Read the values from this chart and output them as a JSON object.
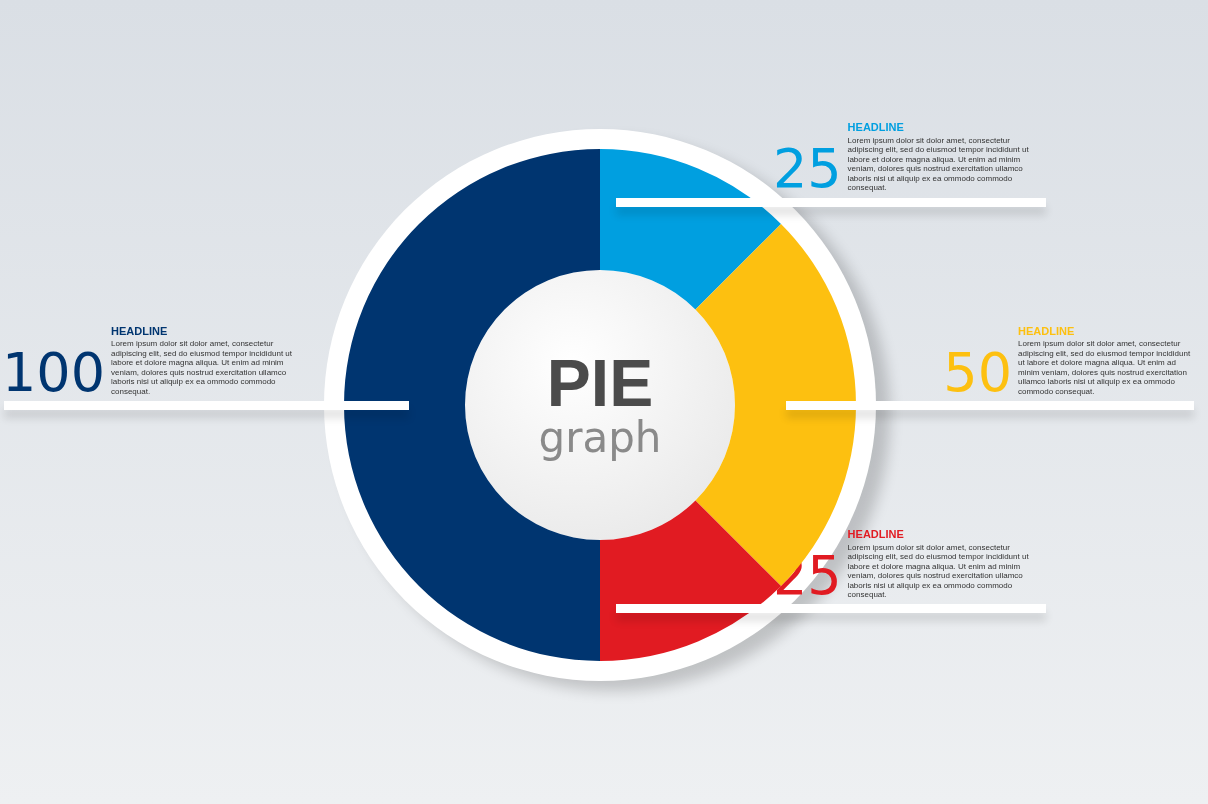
{
  "chart_data": {
    "type": "donut",
    "title": "PIE",
    "subtitle": "graph",
    "categories": [
      "HEADLINE",
      "HEADLINE",
      "HEADLINE",
      "HEADLINE"
    ],
    "values": [
      25,
      50,
      25,
      100
    ],
    "colors": [
      "#009fe0",
      "#fdc010",
      "#e11b22",
      "#003570"
    ],
    "data_labels": true,
    "legend": false,
    "annotations": [
      "Lorem ipsum dolor sit dolor amet, consectetur adipiscing elit, sed do eiusmod tempor incididunt ut labore et dolore magna aliqua. Ut enim ad minim veniam, dolores quis nostrud exercitation ullamco laboris nisi ut aliquip ex ea ommodo commodo consequat.",
      "Lorem ipsum dolor sit dolor amet, consectetur adipiscing elit, sed do eiusmod tempor incididunt ut labore et dolore magna aliqua. Ut enim ad minim veniam, dolores quis nostrud exercitation ullamco laboris nisi ut aliquip ex ea ommodo commodo consequat.",
      "Lorem ipsum dolor sit dolor amet, consectetur adipiscing elit, sed do eiusmod tempor incididunt ut labore et dolore magna aliqua. Ut enim ad minim veniam, dolores quis nostrud exercitation ullamco laboris nisi ut aliquip ex ea ommodo commodo consequat.",
      "Lorem ipsum dolor sit dolor amet, consectetur adipiscing elit, sed do eiusmod tempor incididunt ut labore et dolore magna aliqua. Ut enim ad minim veniam, dolores quis nostrud exercitation ullamco laboris nisi ut aliquip ex ea ommodo commodo consequat."
    ]
  }
}
